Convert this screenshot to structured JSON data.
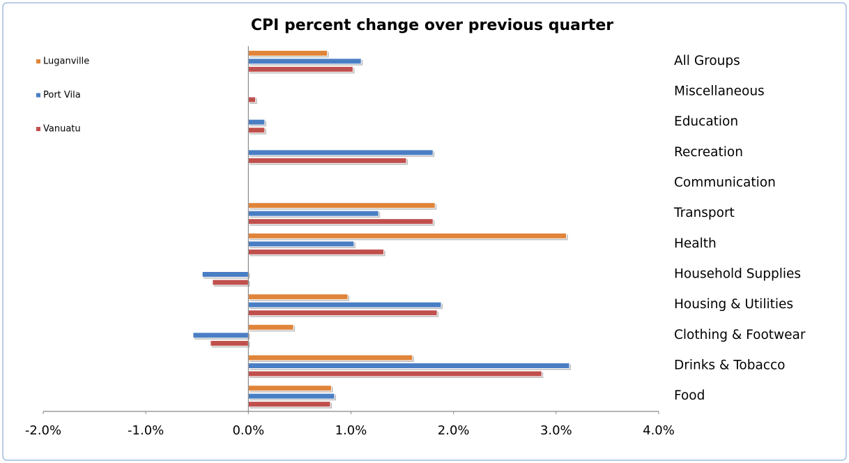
{
  "chart_data": {
    "type": "hbar",
    "title": "CPI  percent change over previous quarter",
    "categories": [
      "All Groups",
      "Miscellaneous",
      "Education",
      "Recreation",
      "Communication",
      "Transport",
      "Health",
      "Household Supplies",
      "Housing & Utilities",
      "Clothing & Footwear",
      "Drinks & Tobacco",
      "Food"
    ],
    "series": [
      {
        "name": "Luganville",
        "color": "#e0843a",
        "values": [
          0.77,
          null,
          null,
          null,
          null,
          1.82,
          3.1,
          null,
          0.97,
          0.44,
          1.6,
          0.81
        ]
      },
      {
        "name": "Port Vila",
        "color": "#4a7ec4",
        "values": [
          1.1,
          null,
          0.16,
          1.8,
          null,
          1.27,
          1.03,
          -0.45,
          1.88,
          -0.54,
          3.13,
          0.84
        ]
      },
      {
        "name": "Vanuatu",
        "color": "#c0504d",
        "values": [
          1.02,
          0.07,
          0.16,
          1.54,
          null,
          1.8,
          1.32,
          -0.35,
          1.84,
          -0.37,
          2.86,
          0.8
        ]
      }
    ],
    "xlim": [
      -2,
      4
    ],
    "xticks": [
      {
        "value": -2,
        "label": "-2.0%"
      },
      {
        "value": -1,
        "label": "-1.0%"
      },
      {
        "value": 0,
        "label": "0.0%"
      },
      {
        "value": 1,
        "label": "1.0%"
      },
      {
        "value": 2,
        "label": "2.0%"
      },
      {
        "value": 3,
        "label": "3.0%"
      },
      {
        "value": 4,
        "label": "4.0%"
      }
    ],
    "legend": "top-left"
  }
}
